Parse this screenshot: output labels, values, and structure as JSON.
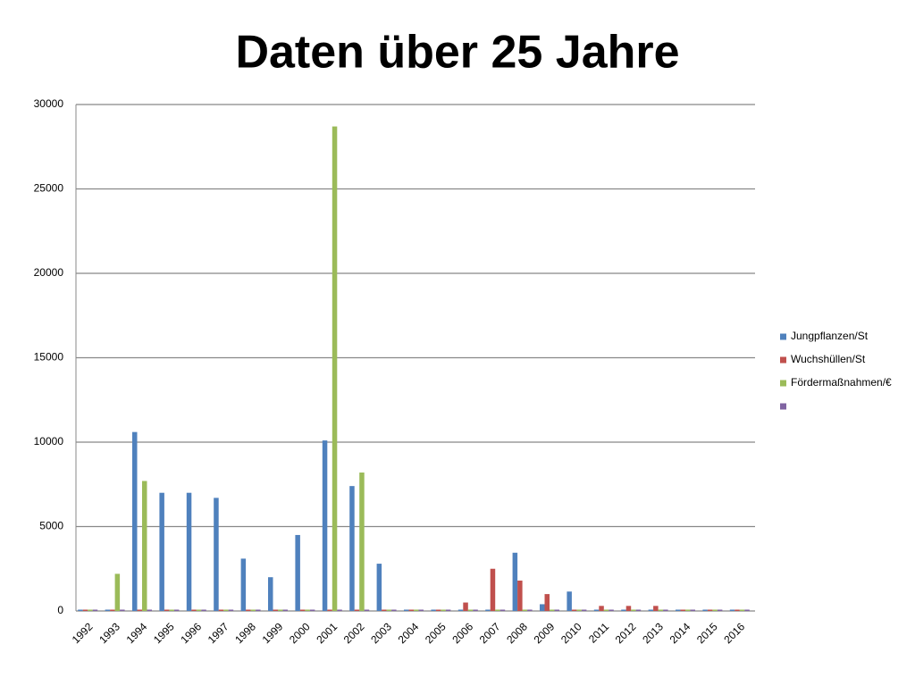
{
  "chart_data": {
    "type": "bar",
    "title": "Daten über 25 Jahre",
    "categories": [
      "1992",
      "1993",
      "1994",
      "1995",
      "1996",
      "1997",
      "1998",
      "1999",
      "2000",
      "2001",
      "2002",
      "2003",
      "2004",
      "2005",
      "2006",
      "2007",
      "2008",
      "2009",
      "2010",
      "2011",
      "2012",
      "2013",
      "2014",
      "2015",
      "2016"
    ],
    "series": [
      {
        "name": "Jungpflanzen/St",
        "color": "#4f81bd",
        "values": [
          0,
          0,
          10600,
          7000,
          7000,
          6700,
          3100,
          2000,
          4500,
          10100,
          7400,
          2800,
          0,
          0,
          0,
          0,
          3450,
          400,
          1150,
          0,
          0,
          0,
          0,
          0,
          0
        ]
      },
      {
        "name": "Wuchshüllen/St",
        "color": "#c0504d",
        "values": [
          0,
          0,
          0,
          0,
          0,
          0,
          0,
          0,
          0,
          0,
          0,
          0,
          0,
          0,
          500,
          2500,
          1800,
          1000,
          0,
          300,
          300,
          300,
          0,
          0,
          0
        ]
      },
      {
        "name": "Fördermaßnahmen/€",
        "color": "#9bbb59",
        "values": [
          0,
          2200,
          7700,
          0,
          0,
          0,
          0,
          0,
          0,
          28700,
          8200,
          0,
          0,
          0,
          0,
          0,
          0,
          0,
          0,
          0,
          0,
          0,
          0,
          0,
          0
        ]
      },
      {
        "color": "#8064a2",
        "values": [
          0,
          0,
          0,
          0,
          0,
          0,
          0,
          0,
          0,
          0,
          0,
          0,
          0,
          0,
          0,
          0,
          0,
          0,
          0,
          0,
          0,
          0,
          0,
          0,
          0
        ]
      }
    ],
    "ylim": [
      0,
      30000
    ],
    "yticks": [
      0,
      5000,
      10000,
      15000,
      20000,
      25000,
      30000
    ],
    "grid": true,
    "legend": "right"
  }
}
